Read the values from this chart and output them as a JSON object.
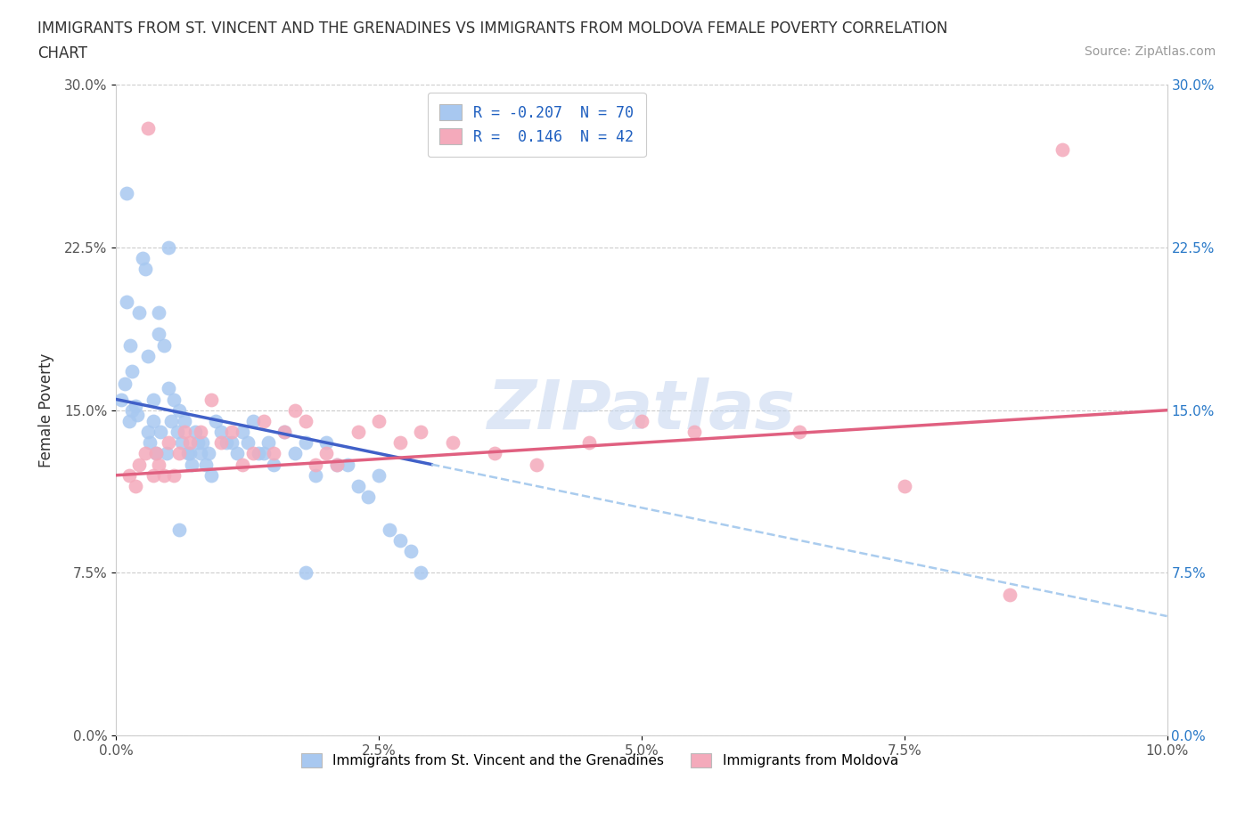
{
  "title_line1": "IMMIGRANTS FROM ST. VINCENT AND THE GRENADINES VS IMMIGRANTS FROM MOLDOVA FEMALE POVERTY CORRELATION",
  "title_line2": "CHART",
  "source": "Source: ZipAtlas.com",
  "xlabel": "",
  "ylabel": "Female Poverty",
  "xlim": [
    0.0,
    10.0
  ],
  "ylim": [
    0.0,
    30.0
  ],
  "xticks": [
    0.0,
    2.5,
    5.0,
    7.5,
    10.0
  ],
  "yticks": [
    0.0,
    7.5,
    15.0,
    22.5,
    30.0
  ],
  "xtick_labels": [
    "0.0%",
    "2.5%",
    "5.0%",
    "7.5%",
    "10.0%"
  ],
  "ytick_labels": [
    "0.0%",
    "7.5%",
    "15.0%",
    "22.5%",
    "30.0%"
  ],
  "blue_color": "#A8C8F0",
  "pink_color": "#F4AABB",
  "blue_line_color": "#4060C8",
  "pink_line_color": "#E06080",
  "blue_dashed_color": "#AACCEE",
  "R_blue": -0.207,
  "N_blue": 70,
  "R_pink": 0.146,
  "N_pink": 42,
  "legend_label_blue": "Immigrants from St. Vincent and the Grenadines",
  "legend_label_pink": "Immigrants from Moldova",
  "watermark": "ZIPatlas",
  "blue_line_x0": 0.0,
  "blue_line_y0": 15.5,
  "blue_line_x1": 3.0,
  "blue_line_y1": 12.5,
  "blue_dash_x0": 3.0,
  "blue_dash_y0": 12.5,
  "blue_dash_x1": 10.0,
  "blue_dash_y1": 5.5,
  "pink_line_x0": 0.0,
  "pink_line_y0": 12.0,
  "pink_line_x1": 10.0,
  "pink_line_y1": 15.0,
  "blue_scatter_x": [
    0.05,
    0.08,
    0.1,
    0.12,
    0.13,
    0.15,
    0.15,
    0.18,
    0.2,
    0.22,
    0.25,
    0.28,
    0.3,
    0.3,
    0.32,
    0.35,
    0.35,
    0.38,
    0.4,
    0.4,
    0.42,
    0.45,
    0.48,
    0.5,
    0.5,
    0.52,
    0.55,
    0.58,
    0.6,
    0.62,
    0.65,
    0.68,
    0.7,
    0.72,
    0.75,
    0.78,
    0.8,
    0.82,
    0.85,
    0.88,
    0.9,
    0.95,
    1.0,
    1.05,
    1.1,
    1.15,
    1.2,
    1.25,
    1.3,
    1.35,
    1.4,
    1.45,
    1.5,
    1.6,
    1.7,
    1.8,
    1.9,
    2.0,
    2.1,
    2.2,
    2.3,
    2.4,
    2.5,
    2.6,
    2.7,
    2.8,
    2.9,
    0.1,
    0.6,
    1.8
  ],
  "blue_scatter_y": [
    15.5,
    16.2,
    20.0,
    14.5,
    18.0,
    15.0,
    16.8,
    15.2,
    14.8,
    19.5,
    22.0,
    21.5,
    17.5,
    14.0,
    13.5,
    14.5,
    15.5,
    13.0,
    19.5,
    18.5,
    14.0,
    18.0,
    13.0,
    22.5,
    16.0,
    14.5,
    15.5,
    14.0,
    15.0,
    13.5,
    14.5,
    13.0,
    13.0,
    12.5,
    14.0,
    13.5,
    13.0,
    13.5,
    12.5,
    13.0,
    12.0,
    14.5,
    14.0,
    13.5,
    13.5,
    13.0,
    14.0,
    13.5,
    14.5,
    13.0,
    13.0,
    13.5,
    12.5,
    14.0,
    13.0,
    13.5,
    12.0,
    13.5,
    12.5,
    12.5,
    11.5,
    11.0,
    12.0,
    9.5,
    9.0,
    8.5,
    7.5,
    25.0,
    9.5,
    7.5
  ],
  "pink_scatter_x": [
    0.12,
    0.18,
    0.22,
    0.28,
    0.3,
    0.35,
    0.38,
    0.4,
    0.45,
    0.5,
    0.55,
    0.6,
    0.65,
    0.7,
    0.8,
    0.9,
    1.0,
    1.1,
    1.2,
    1.3,
    1.4,
    1.5,
    1.6,
    1.7,
    1.8,
    1.9,
    2.0,
    2.1,
    2.3,
    2.5,
    2.7,
    2.9,
    3.2,
    3.6,
    4.0,
    4.5,
    5.0,
    5.5,
    6.5,
    7.5,
    8.5,
    9.0
  ],
  "pink_scatter_y": [
    12.0,
    11.5,
    12.5,
    13.0,
    28.0,
    12.0,
    13.0,
    12.5,
    12.0,
    13.5,
    12.0,
    13.0,
    14.0,
    13.5,
    14.0,
    15.5,
    13.5,
    14.0,
    12.5,
    13.0,
    14.5,
    13.0,
    14.0,
    15.0,
    14.5,
    12.5,
    13.0,
    12.5,
    14.0,
    14.5,
    13.5,
    14.0,
    13.5,
    13.0,
    12.5,
    13.5,
    14.5,
    14.0,
    14.0,
    11.5,
    6.5,
    27.0
  ]
}
